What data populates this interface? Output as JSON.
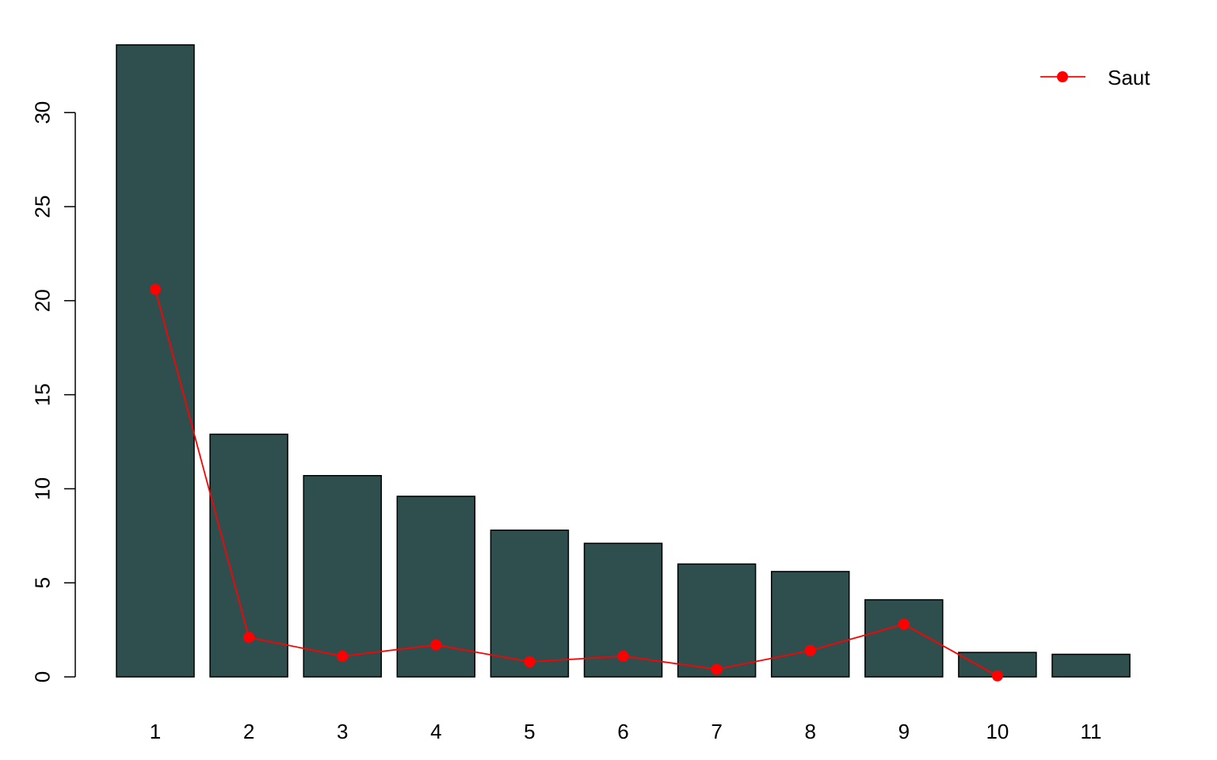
{
  "chart_data": {
    "type": "bar",
    "title": "",
    "xlabel": "",
    "ylabel": "",
    "categories": [
      "1",
      "2",
      "3",
      "4",
      "5",
      "6",
      "7",
      "8",
      "9",
      "10",
      "11"
    ],
    "series": [
      {
        "type": "bar",
        "values": [
          33.6,
          12.9,
          10.7,
          9.6,
          7.8,
          7.1,
          6.0,
          5.6,
          4.1,
          1.3,
          1.2
        ],
        "color": "#2F4F4F"
      },
      {
        "name": "Saut",
        "type": "line",
        "values": [
          20.6,
          2.1,
          1.1,
          1.7,
          0.8,
          1.1,
          0.4,
          1.4,
          2.8,
          0.05,
          null
        ],
        "color": "#FF0000"
      }
    ],
    "ylim": [
      0,
      33.6
    ],
    "yticks": [
      0,
      5,
      10,
      15,
      20,
      25,
      30
    ],
    "legend": {
      "position": "top-right",
      "entries": [
        "Saut"
      ]
    },
    "grid": false
  }
}
